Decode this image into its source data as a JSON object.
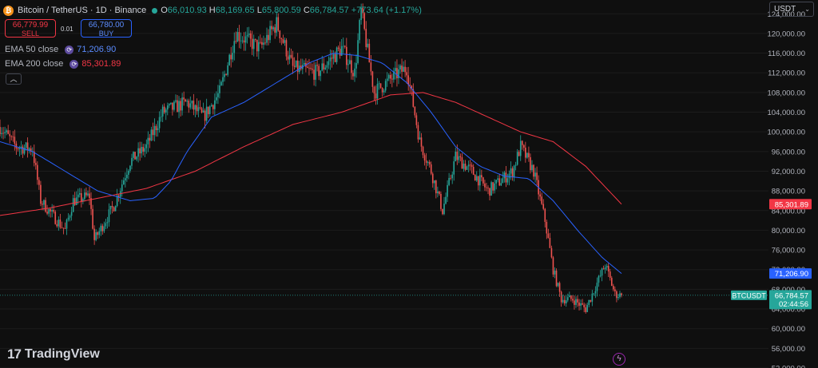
{
  "header": {
    "symbol_title": "Bitcoin / TetherUS · 1D · Binance",
    "coin_glyph": "₿",
    "o_label": "O",
    "o_value": "66,010.93",
    "h_label": "H",
    "h_value": "68,169.65",
    "l_label": "L",
    "l_value": "65,800.59",
    "c_label": "C",
    "c_value": "66,784.57",
    "change": "+773.64 (+1.17%)"
  },
  "trade": {
    "sell_price": "66,779.99",
    "sell_label": "SELL",
    "spread": "0.01",
    "buy_price": "66,780.00",
    "buy_label": "BUY"
  },
  "indicators": [
    {
      "label": "EMA 50 close",
      "value": "71,206.90",
      "color": "#4a6df2"
    },
    {
      "label": "EMA 200 close",
      "value": "85,301.89",
      "color": "#f23645"
    }
  ],
  "currency_selector": "USDT",
  "brand": "TradingView",
  "colors": {
    "up": "#26a69a",
    "down": "#ef5350",
    "ema50": "#2962ff",
    "ema200": "#f23645",
    "background": "#0f0f0f"
  },
  "chart_data": {
    "type": "candlestick",
    "symbol": "BTCUSDT",
    "interval": "1D",
    "price_axis_ticks": [
      52000,
      56000,
      60000,
      64000,
      68000,
      72000,
      76000,
      80000,
      84000,
      88000,
      92000,
      96000,
      100000,
      104000,
      108000,
      112000,
      116000,
      120000,
      124000
    ],
    "ylim": [
      52000,
      126800
    ],
    "last_price": {
      "label": "BTCUSDT",
      "value": "66,784.57",
      "countdown": "02:44:56"
    },
    "ema50": {
      "name": "EMA 50 close",
      "last": "71,206.90",
      "last_value": 71206.9,
      "close_trend": [
        [
          0,
          98000
        ],
        [
          20,
          96000
        ],
        [
          40,
          92000
        ],
        [
          60,
          88000
        ],
        [
          80,
          86000
        ],
        [
          95,
          86500
        ],
        [
          105,
          90000
        ],
        [
          115,
          96000
        ],
        [
          130,
          103000
        ],
        [
          150,
          106000
        ],
        [
          170,
          110000
        ],
        [
          190,
          114000
        ],
        [
          205,
          116000
        ],
        [
          220,
          115500
        ],
        [
          235,
          114000
        ],
        [
          250,
          110000
        ],
        [
          265,
          104000
        ],
        [
          280,
          97000
        ],
        [
          295,
          93000
        ],
        [
          310,
          91000
        ],
        [
          325,
          90500
        ],
        [
          340,
          86000
        ],
        [
          355,
          80000
        ],
        [
          370,
          74500
        ],
        [
          382,
          71206
        ]
      ]
    },
    "ema200": {
      "name": "EMA 200 close",
      "last": "85,301.89",
      "last_value": 85301.89,
      "close_trend": [
        [
          0,
          83000
        ],
        [
          30,
          84500
        ],
        [
          60,
          86500
        ],
        [
          90,
          88500
        ],
        [
          120,
          92000
        ],
        [
          150,
          97000
        ],
        [
          180,
          101500
        ],
        [
          210,
          104000
        ],
        [
          240,
          107500
        ],
        [
          260,
          108000
        ],
        [
          280,
          106000
        ],
        [
          300,
          103000
        ],
        [
          320,
          100000
        ],
        [
          340,
          98000
        ],
        [
          360,
          93000
        ],
        [
          382,
          85302
        ]
      ]
    },
    "close_path": [
      [
        0,
        101000
      ],
      [
        10,
        97000
      ],
      [
        20,
        96500
      ],
      [
        25,
        86000
      ],
      [
        30,
        84000
      ],
      [
        40,
        80000
      ],
      [
        45,
        86000
      ],
      [
        55,
        87000
      ],
      [
        58,
        78000
      ],
      [
        70,
        85000
      ],
      [
        80,
        94000
      ],
      [
        90,
        97000
      ],
      [
        100,
        104000
      ],
      [
        115,
        106000
      ],
      [
        125,
        103000
      ],
      [
        135,
        108000
      ],
      [
        145,
        120000
      ],
      [
        160,
        117000
      ],
      [
        170,
        122000
      ],
      [
        180,
        113000
      ],
      [
        195,
        112000
      ],
      [
        210,
        117000
      ],
      [
        218,
        112000
      ],
      [
        222,
        124500
      ],
      [
        230,
        108000
      ],
      [
        245,
        112000
      ],
      [
        250,
        113000
      ],
      [
        258,
        98000
      ],
      [
        265,
        92000
      ],
      [
        272,
        84000
      ],
      [
        280,
        95000
      ],
      [
        290,
        92000
      ],
      [
        300,
        88000
      ],
      [
        315,
        92000
      ],
      [
        320,
        97000
      ],
      [
        328,
        92000
      ],
      [
        335,
        82000
      ],
      [
        340,
        72000
      ],
      [
        345,
        66000
      ],
      [
        352,
        66000
      ],
      [
        360,
        64000
      ],
      [
        368,
        70000
      ],
      [
        372,
        73000
      ],
      [
        378,
        67000
      ],
      [
        382,
        66784
      ]
    ]
  }
}
